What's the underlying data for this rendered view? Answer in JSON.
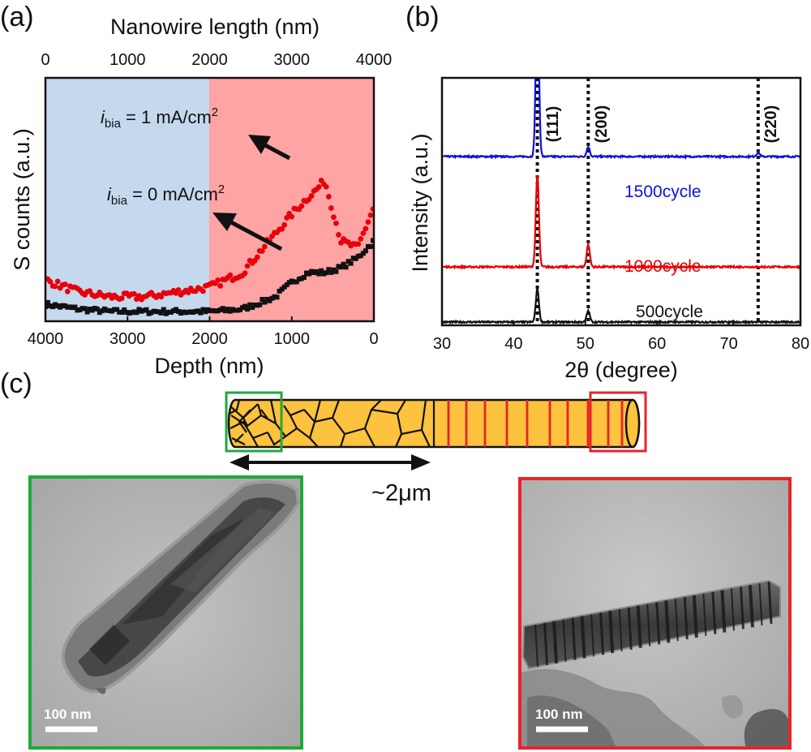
{
  "panels": {
    "a": {
      "letter": "(a)",
      "top_axis_label": "Nanowire length (nm)",
      "bottom_axis_label": "Depth (nm)",
      "y_axis_label": "S counts (a.u.)",
      "top_ticks": [
        "0",
        "1000",
        "2000",
        "3000",
        "4000"
      ],
      "bottom_ticks": [
        "4000",
        "3000",
        "2000",
        "1000",
        "0"
      ],
      "annotation_1": {
        "prefix": "i",
        "sub": "bia",
        "text": " = 1 mA/cm",
        "sup": "2"
      },
      "annotation_0": {
        "prefix": "i",
        "sub": "bia",
        "text": " = 0 mA/cm",
        "sup": "2"
      },
      "colors": {
        "region_left": "#c5d9ee",
        "region_right": "#ffa4a4",
        "series_red": "#e8000b",
        "series_black": "#111111"
      }
    },
    "b": {
      "letter": "(b)",
      "x_axis_label": "2θ (degree)",
      "y_axis_label": "Intensity (a.u.)",
      "x_ticks": [
        "30",
        "40",
        "50",
        "60",
        "70",
        "80"
      ],
      "peak_labels": [
        "(111)",
        "(200)",
        "(220)"
      ],
      "series_labels": [
        {
          "text": "1500cycle",
          "color": "#1010e0"
        },
        {
          "text": "1000cycle",
          "color": "#e80000"
        },
        {
          "text": "500cycle",
          "color": "#111111"
        }
      ]
    },
    "c": {
      "letter": "(c)",
      "length_label": "~2μm",
      "scale_bar_left": "100 nm",
      "scale_bar_right": "100 nm",
      "colors": {
        "wire": "#fdc23e",
        "green_box": "#1faa3a",
        "red_box": "#e8232a"
      }
    }
  },
  "chart_data": [
    {
      "type": "scatter",
      "panel": "a",
      "xlabel": "Depth (nm)",
      "x2label": "Nanowire length (nm)",
      "ylabel": "S counts (a.u.)",
      "xlim": [
        4000,
        0
      ],
      "x2lim": [
        0,
        4000
      ],
      "ylim": [
        0,
        1
      ],
      "shaded_regions": [
        {
          "depth_from": 4000,
          "depth_to": 2000,
          "color": "#c5d9ee"
        },
        {
          "depth_from": 2000,
          "depth_to": 0,
          "color": "#ffa4a4"
        }
      ],
      "series": [
        {
          "name": "i_bia = 1 mA/cm2",
          "color": "#e8000b",
          "marker": "circle",
          "x": [
            4000,
            3600,
            3200,
            2800,
            2400,
            2000,
            1600,
            1200,
            1000,
            800,
            700,
            600,
            400,
            200,
            0
          ],
          "y": [
            0.17,
            0.12,
            0.1,
            0.1,
            0.12,
            0.14,
            0.2,
            0.36,
            0.44,
            0.51,
            0.54,
            0.58,
            0.33,
            0.3,
            0.47
          ]
        },
        {
          "name": "i_bia = 0 mA/cm2",
          "color": "#111111",
          "marker": "square",
          "x": [
            4000,
            3600,
            3200,
            2800,
            2400,
            2000,
            1600,
            1200,
            1000,
            800,
            600,
            400,
            200,
            0
          ],
          "y": [
            0.07,
            0.05,
            0.04,
            0.04,
            0.04,
            0.04,
            0.05,
            0.1,
            0.16,
            0.2,
            0.2,
            0.22,
            0.26,
            0.33
          ]
        }
      ]
    },
    {
      "type": "line",
      "panel": "b",
      "xlabel": "2θ (degree)",
      "ylabel": "Intensity (a.u.)",
      "xlim": [
        30,
        80
      ],
      "reference_lines": [
        {
          "x": 43.3,
          "label": "(111)"
        },
        {
          "x": 50.4,
          "label": "(200)"
        },
        {
          "x": 74.1,
          "label": "(220)"
        }
      ],
      "series": [
        {
          "name": "1500cycle",
          "color": "#1010e0",
          "offset": 0.6,
          "peaks": [
            {
              "x": 43.3,
              "h": 0.6
            },
            {
              "x": 50.4,
              "h": 0.035
            },
            {
              "x": 74.1,
              "h": 0.015
            }
          ]
        },
        {
          "name": "1000cycle",
          "color": "#e80000",
          "offset": 0.2,
          "peaks": [
            {
              "x": 43.3,
              "h": 0.33
            },
            {
              "x": 50.4,
              "h": 0.08
            },
            {
              "x": 74.1,
              "h": 0.0
            }
          ]
        },
        {
          "name": "500cycle",
          "color": "#111111",
          "offset": 0.0,
          "peaks": [
            {
              "x": 43.3,
              "h": 0.12
            },
            {
              "x": 50.4,
              "h": 0.04
            },
            {
              "x": 74.1,
              "h": 0.0
            }
          ]
        }
      ]
    }
  ]
}
